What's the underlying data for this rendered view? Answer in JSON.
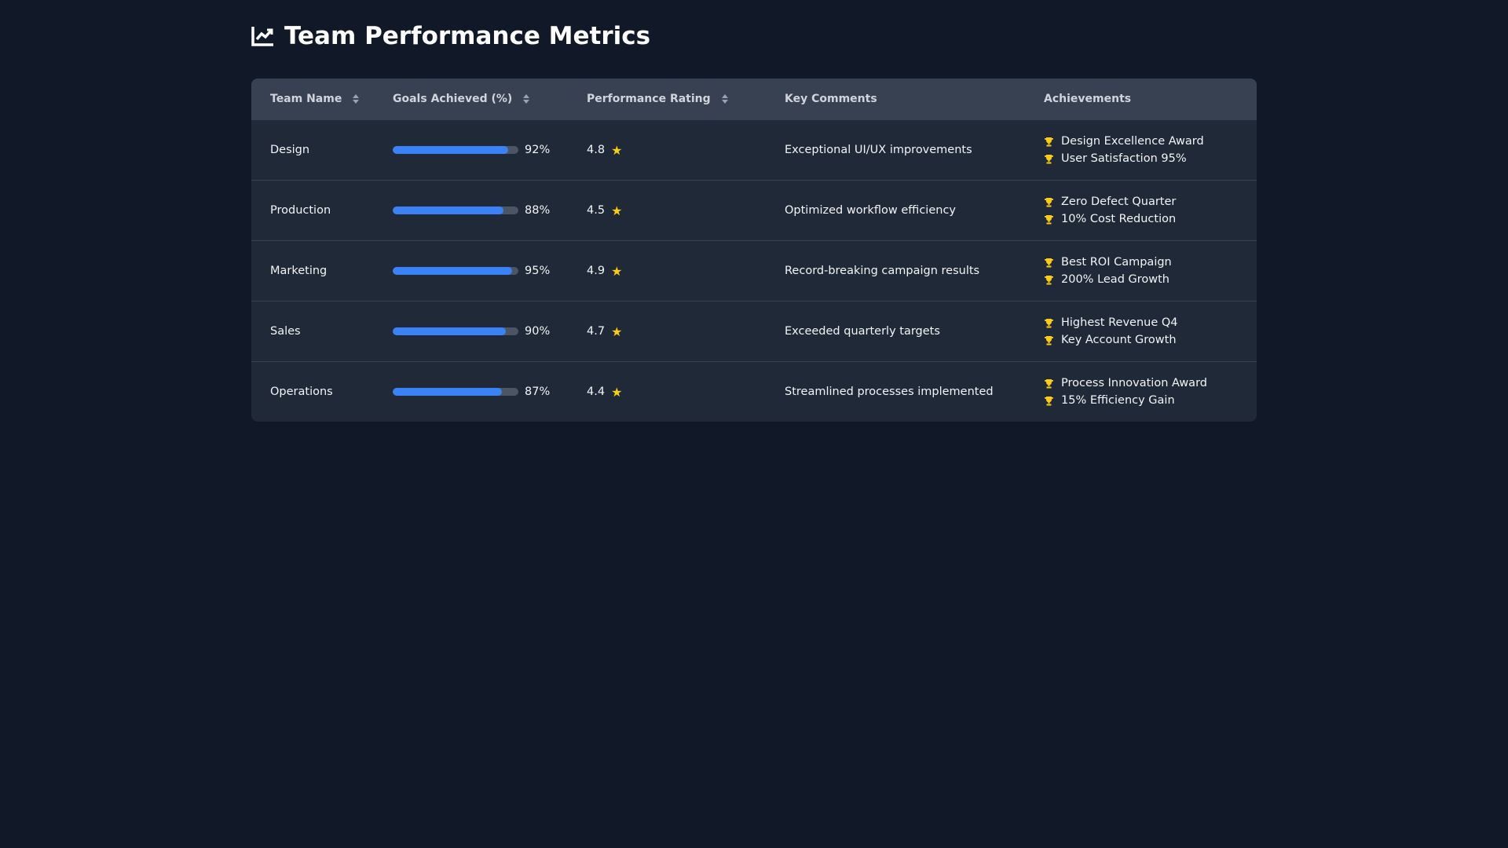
{
  "page": {
    "title": "Team Performance Metrics",
    "title_icon": "chart-line-icon"
  },
  "table": {
    "headers": [
      "Team Name",
      "Goals Achieved (%)",
      "Performance Rating",
      "Key Comments",
      "Achievements"
    ],
    "rows": [
      {
        "team": "Design",
        "goal": 92,
        "goal_label": "92%",
        "rating": "4.8",
        "comment": "Exceptional UI/UX improvements",
        "achievements": [
          "Design Excellence Award",
          "User Satisfaction 95%"
        ]
      },
      {
        "team": "Production",
        "goal": 88,
        "goal_label": "88%",
        "rating": "4.5",
        "comment": "Optimized workflow efficiency",
        "achievements": [
          "Zero Defect Quarter",
          "10% Cost Reduction"
        ]
      },
      {
        "team": "Marketing",
        "goal": 95,
        "goal_label": "95%",
        "rating": "4.9",
        "comment": "Record-breaking campaign results",
        "achievements": [
          "Best ROI Campaign",
          "200% Lead Growth"
        ]
      },
      {
        "team": "Sales",
        "goal": 90,
        "goal_label": "90%",
        "rating": "4.7",
        "comment": "Exceeded quarterly targets",
        "achievements": [
          "Highest Revenue Q4",
          "Key Account Growth"
        ]
      },
      {
        "team": "Operations",
        "goal": 87,
        "goal_label": "87%",
        "rating": "4.4",
        "comment": "Streamlined processes implemented",
        "achievements": [
          "Process Innovation Award",
          "15% Efficiency Gain"
        ]
      }
    ]
  },
  "colors": {
    "accent": "#3b82f6",
    "star": "#facc15",
    "background": "#111827"
  }
}
